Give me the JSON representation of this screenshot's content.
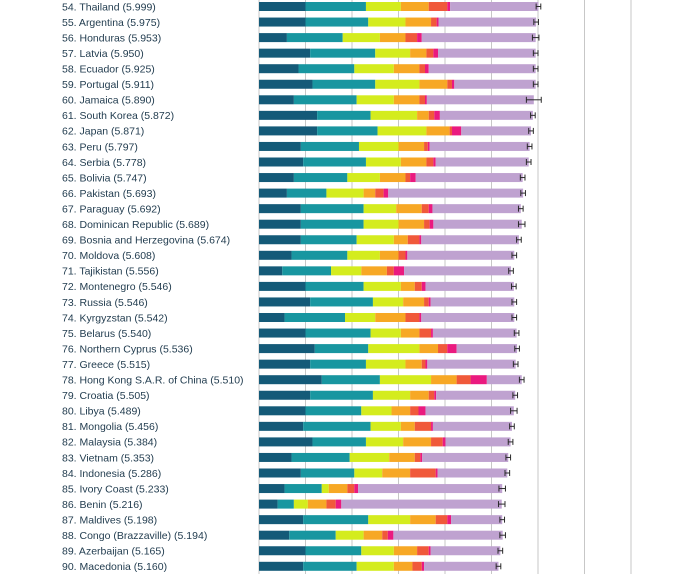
{
  "chart_data": {
    "type": "bar",
    "stacked": true,
    "orientation": "horizontal",
    "grid": true,
    "colors": [
      "#145a78",
      "#1896a0",
      "#d4ec1e",
      "#f7a825",
      "#f0593a",
      "#ea1a7f",
      "#bfa2d0"
    ],
    "rows": [
      {
        "label": "54.  Thailand (5.999)",
        "segments": [
          1.0,
          1.3,
          0.75,
          0.6,
          0.4,
          0.06,
          1.9
        ],
        "err": 0.05
      },
      {
        "label": "55.  Argentina (5.975)",
        "segments": [
          1.0,
          1.35,
          0.8,
          0.55,
          0.12,
          0.04,
          2.1
        ],
        "err": 0.05
      },
      {
        "label": "56.  Honduras (5.953)",
        "segments": [
          0.6,
          1.2,
          0.8,
          0.55,
          0.25,
          0.1,
          2.45
        ],
        "err": 0.07
      },
      {
        "label": "57.  Latvia (5.950)",
        "segments": [
          1.1,
          1.4,
          0.75,
          0.35,
          0.15,
          0.1,
          2.1
        ],
        "err": 0.05
      },
      {
        "label": "58.  Ecuador (5.925)",
        "segments": [
          0.85,
          1.2,
          0.85,
          0.55,
          0.12,
          0.08,
          2.3
        ],
        "err": 0.05
      },
      {
        "label": "59.  Portugal (5.911)",
        "segments": [
          1.15,
          1.35,
          0.95,
          0.6,
          0.1,
          0.05,
          1.75
        ],
        "err": 0.05
      },
      {
        "label": "60.  Jamaica (5.890)",
        "segments": [
          0.75,
          1.35,
          0.8,
          0.55,
          0.12,
          0.04,
          2.3
        ],
        "err": 0.16
      },
      {
        "label": "61.  South Korea (5.872)",
        "segments": [
          1.25,
          1.15,
          1.0,
          0.25,
          0.12,
          0.12,
          2.0
        ],
        "err": 0.05
      },
      {
        "label": "62.  Japan (5.871)",
        "segments": [
          1.25,
          1.3,
          1.05,
          0.5,
          0.05,
          0.2,
          1.5
        ],
        "err": 0.05
      },
      {
        "label": "63.  Peru (5.797)",
        "segments": [
          0.9,
          1.25,
          0.85,
          0.55,
          0.08,
          0.04,
          2.15
        ],
        "err": 0.05
      },
      {
        "label": "64.  Serbia (5.778)",
        "segments": [
          0.95,
          1.35,
          0.75,
          0.55,
          0.15,
          0.05,
          2.0
        ],
        "err": 0.05
      },
      {
        "label": "65.  Bolivia (5.747)",
        "segments": [
          0.75,
          1.15,
          0.7,
          0.55,
          0.1,
          0.12,
          2.3
        ],
        "err": 0.05
      },
      {
        "label": "66.  Pakistan (5.693)",
        "segments": [
          0.6,
          0.85,
          0.8,
          0.25,
          0.18,
          0.1,
          2.9
        ],
        "err": 0.05
      },
      {
        "label": "67.  Paraguay (5.692)",
        "segments": [
          0.9,
          1.35,
          0.7,
          0.55,
          0.15,
          0.08,
          1.9
        ],
        "err": 0.05
      },
      {
        "label": "68.  Dominican Republic (5.689)",
        "segments": [
          0.9,
          1.35,
          0.75,
          0.55,
          0.12,
          0.08,
          1.9
        ],
        "err": 0.07
      },
      {
        "label": "69.  Bosnia and Herzegovina (5.674)",
        "segments": [
          0.9,
          1.2,
          0.8,
          0.3,
          0.25,
          0.04,
          2.1
        ],
        "err": 0.05
      },
      {
        "label": "70.  Moldova (5.608)",
        "segments": [
          0.7,
          1.2,
          0.7,
          0.4,
          0.15,
          0.04,
          2.3
        ],
        "err": 0.05
      },
      {
        "label": "71.  Tajikistan (5.556)",
        "segments": [
          0.5,
          1.05,
          0.65,
          0.55,
          0.15,
          0.22,
          2.3
        ],
        "err": 0.05
      },
      {
        "label": "72.  Montenegro (5.546)",
        "segments": [
          1.0,
          1.25,
          0.8,
          0.3,
          0.15,
          0.08,
          1.9
        ],
        "err": 0.05
      },
      {
        "label": "73.  Russia (5.546)",
        "segments": [
          1.1,
          1.35,
          0.65,
          0.45,
          0.1,
          0.04,
          1.8
        ],
        "err": 0.05
      },
      {
        "label": "74.  Kyrgyzstan (5.542)",
        "segments": [
          0.55,
          1.3,
          0.65,
          0.65,
          0.3,
          0.04,
          2.0
        ],
        "err": 0.05
      },
      {
        "label": "75.  Belarus (5.540)",
        "segments": [
          1.0,
          1.4,
          0.65,
          0.4,
          0.25,
          0.04,
          1.8
        ],
        "err": 0.05
      },
      {
        "label": "76.  Northern Cyprus (5.536)",
        "segments": [
          1.2,
          1.15,
          1.1,
          0.4,
          0.2,
          0.2,
          1.3
        ],
        "err": 0.05
      },
      {
        "label": "77.  Greece (5.515)",
        "segments": [
          1.1,
          1.2,
          0.85,
          0.35,
          0.08,
          0.04,
          1.9
        ],
        "err": 0.05
      },
      {
        "label": "78.  Hong Kong S.A.R. of China (5.510)",
        "segments": [
          1.35,
          1.25,
          1.1,
          0.55,
          0.3,
          0.35,
          0.75
        ],
        "err": 0.05
      },
      {
        "label": "79.  Croatia (5.505)",
        "segments": [
          1.1,
          1.35,
          0.8,
          0.4,
          0.12,
          0.04,
          1.7
        ],
        "err": 0.05
      },
      {
        "label": "80.  Libya (5.489)",
        "segments": [
          1.0,
          1.2,
          0.65,
          0.4,
          0.18,
          0.15,
          1.9
        ],
        "err": 0.07
      },
      {
        "label": "81.  Mongolia (5.456)",
        "segments": [
          0.95,
          1.45,
          0.65,
          0.3,
          0.35,
          0.04,
          1.7
        ],
        "err": 0.05
      },
      {
        "label": "82.  Malaysia (5.384)",
        "segments": [
          1.15,
          1.15,
          0.8,
          0.6,
          0.25,
          0.06,
          1.4
        ],
        "err": 0.05
      },
      {
        "label": "83.  Vietnam (5.353)",
        "segments": [
          0.7,
          1.25,
          0.85,
          0.55,
          0.12,
          0.04,
          1.85
        ],
        "err": 0.05
      },
      {
        "label": "84.  Indonesia (5.286)",
        "segments": [
          0.9,
          1.15,
          0.6,
          0.6,
          0.55,
          0.04,
          1.5
        ],
        "err": 0.05
      },
      {
        "label": "85.  Ivory Coast (5.233)",
        "segments": [
          0.55,
          0.8,
          0.15,
          0.4,
          0.15,
          0.08,
          3.1
        ],
        "err": 0.07
      },
      {
        "label": "86.  Benin (5.216)",
        "segments": [
          0.4,
          0.35,
          0.3,
          0.4,
          0.2,
          0.12,
          3.45
        ],
        "err": 0.07
      },
      {
        "label": "87.  Maldives (5.198)",
        "segments": [
          0.95,
          1.4,
          0.9,
          0.55,
          0.25,
          0.08,
          1.1
        ],
        "err": 0.05
      },
      {
        "label": "88.  Congo (Brazzaville) (5.194)",
        "segments": [
          0.65,
          1.0,
          0.6,
          0.4,
          0.12,
          0.12,
          2.35
        ],
        "err": 0.06
      },
      {
        "label": "89.  Azerbaijan (5.165)",
        "segments": [
          1.0,
          1.2,
          0.7,
          0.5,
          0.25,
          0.04,
          1.5
        ],
        "err": 0.05
      },
      {
        "label": "90.  Macedonia (5.160)",
        "segments": [
          0.95,
          1.15,
          0.8,
          0.4,
          0.2,
          0.05,
          1.6
        ],
        "err": 0.05
      }
    ]
  }
}
